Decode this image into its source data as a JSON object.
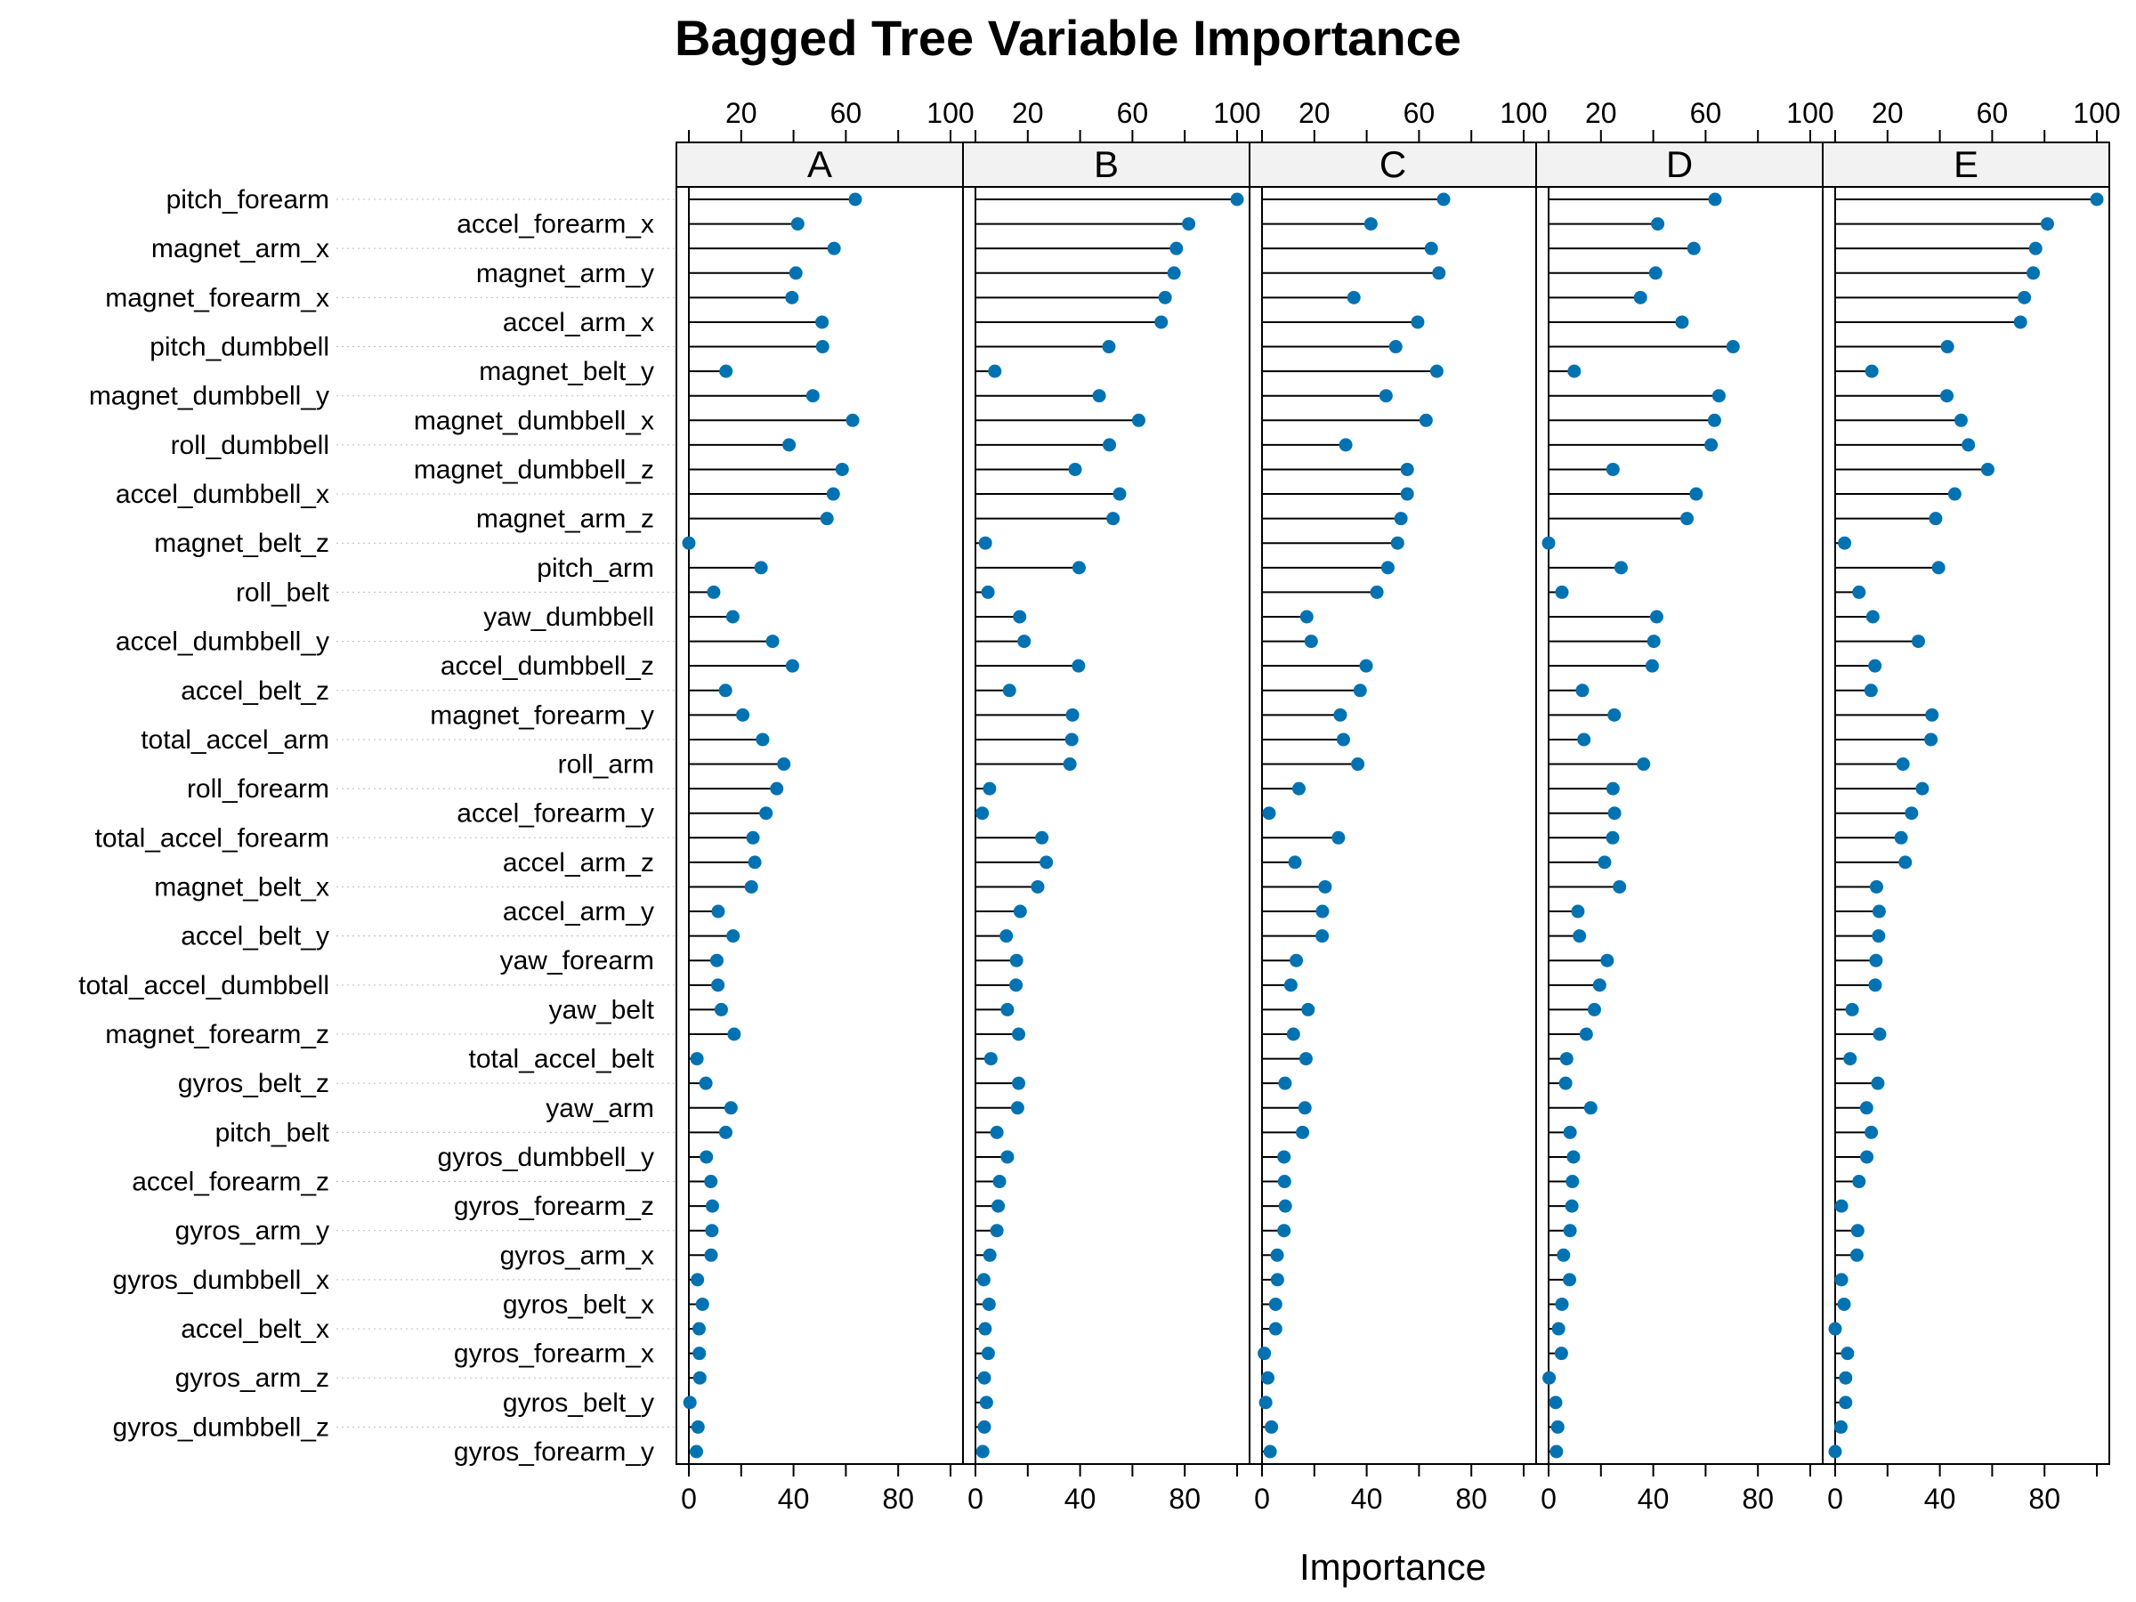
{
  "chart_data": {
    "type": "dot",
    "title": "Bagged Tree Variable Importance",
    "xlabel": "Importance",
    "ylabel": "",
    "xlim": [
      0,
      100
    ],
    "xticks": [
      0,
      20,
      40,
      60,
      80,
      100
    ],
    "grid": false,
    "colors": {
      "point": "#0072B2",
      "segment": "#000000",
      "strip": "#F2F2F2"
    },
    "variables": [
      "pitch_forearm",
      "accel_forearm_x",
      "magnet_arm_x",
      "magnet_arm_y",
      "magnet_forearm_x",
      "accel_arm_x",
      "pitch_dumbbell",
      "magnet_belt_y",
      "magnet_dumbbell_y",
      "magnet_dumbbell_x",
      "roll_dumbbell",
      "magnet_dumbbell_z",
      "accel_dumbbell_x",
      "magnet_arm_z",
      "magnet_belt_z",
      "pitch_arm",
      "roll_belt",
      "yaw_dumbbell",
      "accel_dumbbell_y",
      "accel_dumbbell_z",
      "accel_belt_z",
      "magnet_forearm_y",
      "total_accel_arm",
      "roll_arm",
      "roll_forearm",
      "accel_forearm_y",
      "total_accel_forearm",
      "accel_arm_z",
      "magnet_belt_x",
      "accel_arm_y",
      "accel_belt_y",
      "yaw_forearm",
      "total_accel_dumbbell",
      "yaw_belt",
      "magnet_forearm_z",
      "total_accel_belt",
      "gyros_belt_z",
      "yaw_arm",
      "pitch_belt",
      "gyros_dumbbell_y",
      "accel_forearm_z",
      "gyros_forearm_z",
      "gyros_arm_y",
      "gyros_arm_x",
      "gyros_dumbbell_x",
      "gyros_belt_x",
      "accel_belt_x",
      "gyros_forearm_x",
      "gyros_arm_z",
      "gyros_belt_y",
      "gyros_dumbbell_z",
      "gyros_forearm_y"
    ],
    "panels": [
      {
        "name": "D",
        "values": [
          63.6,
          41.7,
          55.5,
          40.9,
          35.1,
          51.0,
          70.5,
          9.8,
          65.1,
          63.4,
          62.1,
          24.6,
          56.4,
          52.9,
          0,
          27.7,
          5.1,
          41.3,
          40.2,
          39.6,
          12.9,
          25.1,
          13.5,
          36.3,
          24.6,
          25.2,
          24.5,
          21.4,
          27.1,
          11.2,
          11.8,
          22.4,
          19.5,
          17.5,
          14.4,
          6.9,
          6.5,
          16.1,
          8.2,
          9.5,
          9.1,
          8.9,
          8.2,
          5.7,
          8.0,
          5.1,
          3.8,
          4.9,
          0.2,
          2.7,
          3.5,
          3.0
        ]
      },
      {
        "name": "E",
        "values": [
          100,
          81.1,
          76.6,
          75.7,
          72.3,
          70.8,
          42.9,
          14.0,
          42.7,
          48.1,
          50.9,
          58.3,
          45.7,
          38.4,
          3.6,
          39.5,
          9.1,
          14.4,
          31.8,
          15.2,
          13.7,
          37.0,
          36.6,
          25.9,
          33.3,
          29.2,
          25.2,
          26.8,
          15.8,
          16.8,
          16.6,
          15.6,
          15.3,
          6.5,
          17.0,
          5.7,
          16.3,
          12.0,
          13.8,
          12.1,
          9.1,
          2.4,
          8.6,
          8.3,
          2.4,
          3.4,
          0,
          4.7,
          4.0,
          4.0,
          2.2,
          0
        ]
      },
      {
        "name": "A",
        "values": [
          63.6,
          41.6,
          55.5,
          40.9,
          39.4,
          50.9,
          51.1,
          14.2,
          47.4,
          62.6,
          38.3,
          58.6,
          55.2,
          52.8,
          0,
          27.6,
          9.5,
          16.8,
          32.0,
          39.6,
          14.0,
          20.6,
          28.2,
          36.3,
          33.6,
          29.5,
          24.5,
          25.2,
          23.9,
          11.2,
          16.9,
          10.7,
          11.1,
          12.4,
          17.3,
          3.1,
          6.5,
          16.1,
          14.1,
          6.7,
          8.4,
          9.0,
          8.8,
          8.5,
          3.3,
          5.2,
          3.9,
          4.0,
          4.2,
          0.4,
          3.5,
          2.9
        ]
      },
      {
        "name": "B",
        "values": [
          100,
          81.5,
          76.8,
          75.9,
          72.5,
          71.0,
          51.0,
          7.4,
          47.3,
          62.4,
          51.2,
          38.1,
          55.1,
          52.6,
          3.8,
          39.6,
          4.8,
          16.9,
          18.6,
          39.4,
          13.0,
          37.1,
          36.8,
          36.1,
          5.4,
          2.6,
          25.4,
          27.1,
          23.8,
          17.1,
          11.8,
          15.7,
          15.5,
          12.2,
          16.5,
          5.9,
          16.5,
          16.1,
          8.2,
          12.2,
          9.2,
          8.7,
          8.2,
          5.5,
          3.2,
          5.2,
          3.7,
          4.9,
          3.4,
          4.2,
          3.4,
          2.8
        ]
      },
      {
        "name": "C",
        "values": [
          69.4,
          41.6,
          64.7,
          67.6,
          35.1,
          59.5,
          51.1,
          66.8,
          47.4,
          62.7,
          32.0,
          55.5,
          55.5,
          53.1,
          51.8,
          48.1,
          43.9,
          17.1,
          18.8,
          39.8,
          37.5,
          29.9,
          31.1,
          36.6,
          14.1,
          2.7,
          29.2,
          12.6,
          24.1,
          23.1,
          23.0,
          13.1,
          11.0,
          17.6,
          12.0,
          16.8,
          8.8,
          16.4,
          15.5,
          8.4,
          8.6,
          8.9,
          8.4,
          5.8,
          5.9,
          5.2,
          5.2,
          0.9,
          2.2,
          1.4,
          3.6,
          3.1
        ]
      }
    ],
    "layout": "3 columns x 2 rows; top row D, E; bottom row A, B, C"
  }
}
